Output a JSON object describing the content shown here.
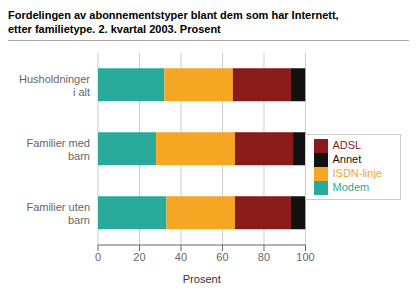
{
  "chart_data": {
    "type": "bar",
    "orientation": "horizontal",
    "stacked": true,
    "title": "Fordelingen av abonnementstyper blant dem som har Internett,\netter familietype. 2. kvartal 2003. Prosent",
    "categories": [
      "Husholdninger\ni alt",
      "Familier med\nbarn",
      "Familier uten\nbarn"
    ],
    "series": [
      {
        "name": "Modem",
        "color": "#2aaa9b",
        "values": [
          32,
          28,
          33
        ]
      },
      {
        "name": "ISDN-linje",
        "color": "#f5a623",
        "values": [
          33,
          38,
          33
        ]
      },
      {
        "name": "ADSL",
        "color": "#8b1a1a",
        "values": [
          28,
          28,
          27
        ]
      },
      {
        "name": "Annet",
        "color": "#111111",
        "values": [
          7,
          6,
          7
        ]
      }
    ],
    "xlabel": "Prosent",
    "xlim": [
      0,
      100
    ],
    "xticks": [
      0,
      20,
      40,
      60,
      80,
      100
    ],
    "grid": true,
    "legend": "right"
  }
}
